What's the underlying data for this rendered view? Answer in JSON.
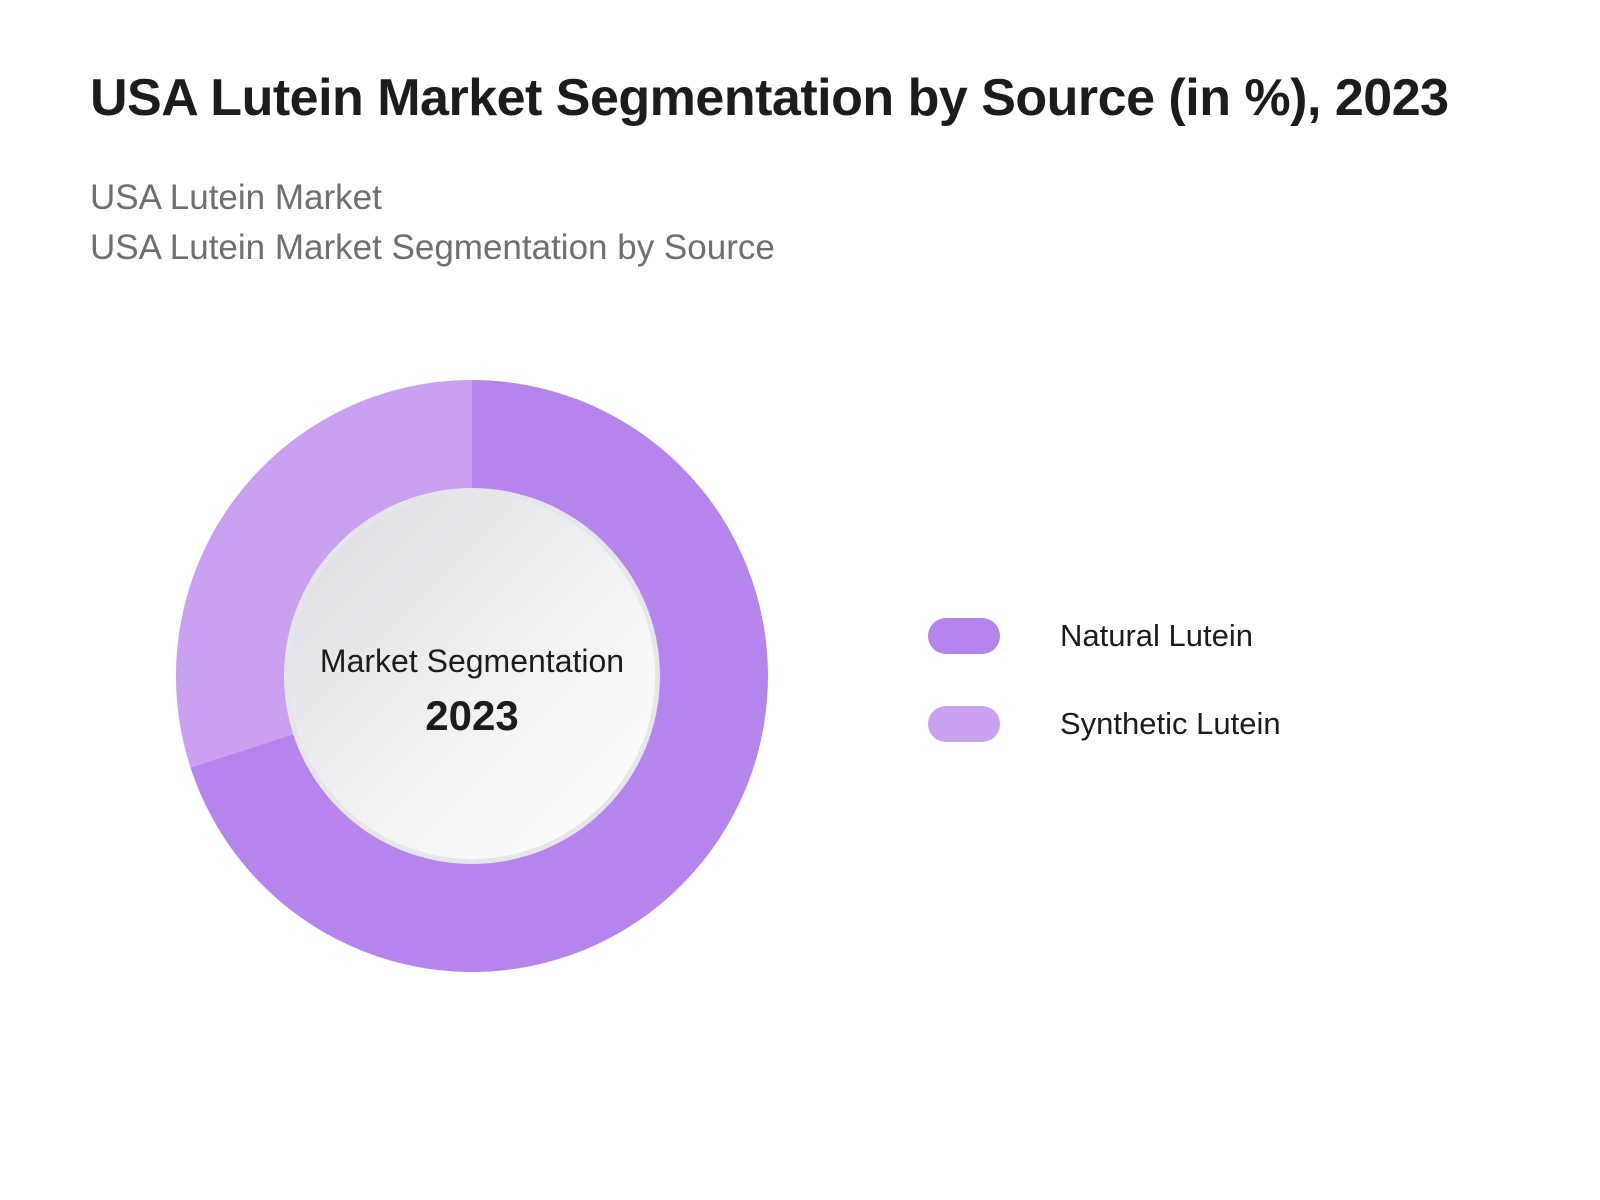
{
  "chart_data": {
    "type": "pie",
    "title": "USA Lutein Market Segmentation by Source (in %), 2023",
    "subtitle_lines": [
      "USA Lutein Market",
      "USA Lutein Market Segmentation by Source"
    ],
    "center_text": [
      "Market Segmentation",
      "2023"
    ],
    "categories": [
      "Natural Lutein",
      "Synthetic Lutein"
    ],
    "values": [
      70,
      30
    ],
    "colors": [
      "#b584ec",
      "#c9a1f0"
    ],
    "legend_position": "right",
    "style": "donut"
  }
}
